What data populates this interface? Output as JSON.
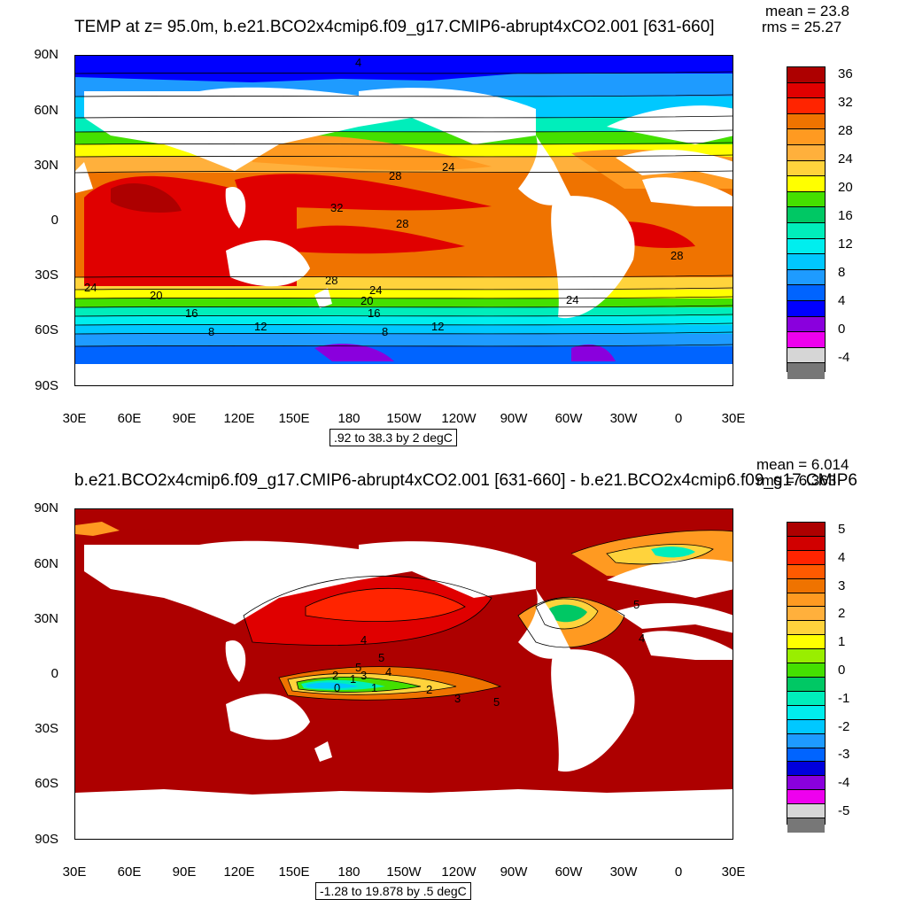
{
  "panels": [
    {
      "title": "TEMP at z=  95.0m, b.e21.BCO2x4cmip6.f09_g17.CMIP6-abrupt4xCO2.001 [631-660]",
      "stats": [
        "mean = 23.8",
        "rms = 25.27"
      ],
      "contour_interval": ".92 to 38.3 by 2 degC",
      "colorbar_labels": [
        "36",
        "32",
        "28",
        "24",
        "20",
        "16",
        "12",
        "8",
        "4",
        "0",
        "-4"
      ],
      "colors": [
        "#ad0000",
        "#e00000",
        "#ff2400",
        "#ef7300",
        "#ff9a21",
        "#ffb03c",
        "#ffd33c",
        "#ffff00",
        "#44e000",
        "#00c864",
        "#00eebb",
        "#00eeee",
        "#00c8ff",
        "#1e9bff",
        "#0064ff",
        "#0000ff",
        "#8a00dd",
        "#ee00ee",
        "#d6d6d6",
        "#777777"
      ],
      "contour_labels": [
        "4",
        "28",
        "24",
        "32",
        "28",
        "28",
        "24",
        "20",
        "24",
        "28",
        "24",
        "20",
        "16",
        "12",
        "16",
        "12",
        "8",
        "8"
      ]
    },
    {
      "title": "b.e21.BCO2x4cmip6.f09_g17.CMIP6-abrupt4xCO2.001 [631-660] - b.e21.BCO2x4cmip6.f09_g17.CMIP6",
      "stats": [
        "mean = 6.014",
        "rms = 6.363"
      ],
      "contour_interval": "-1.28 to 19.878 by .5 degC",
      "colorbar_labels": [
        "5",
        "4",
        "3",
        "2",
        "1",
        "0",
        "-1",
        "-2",
        "-3",
        "-4",
        "-5"
      ],
      "colors": [
        "#ad0000",
        "#d10000",
        "#ff2400",
        "#ff5a00",
        "#ef7300",
        "#ff9a21",
        "#ffb03c",
        "#ffd33c",
        "#ffff00",
        "#99ee00",
        "#44e000",
        "#00c864",
        "#00eebb",
        "#00eeee",
        "#00c8ff",
        "#1e9bff",
        "#0064ff",
        "#0000dd",
        "#8a00dd",
        "#ee00ee",
        "#d6d6d6",
        "#777777"
      ],
      "contour_labels": [
        "4",
        "5",
        "2",
        "1",
        "3",
        "4",
        "5",
        "0",
        "1",
        "2",
        "3",
        "5",
        "4",
        "5"
      ]
    }
  ],
  "axes": {
    "lat_labels": [
      "90N",
      "60N",
      "30N",
      "0",
      "30S",
      "60S",
      "90S"
    ],
    "lon_labels": [
      "30E",
      "60E",
      "90E",
      "120E",
      "150E",
      "180",
      "150W",
      "120W",
      "90W",
      "60W",
      "30W",
      "0",
      "30E"
    ]
  }
}
